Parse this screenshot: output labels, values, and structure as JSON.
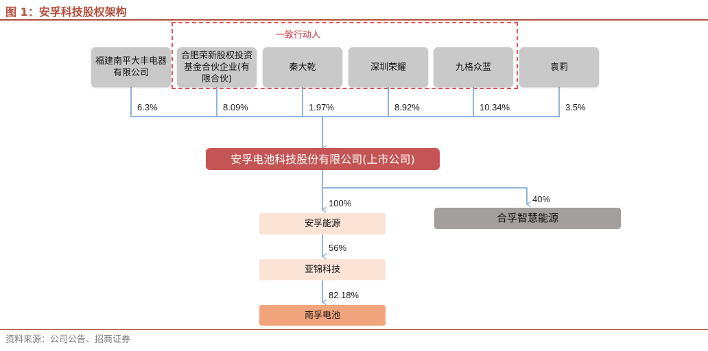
{
  "title": "图 1：安孚科技股权架构",
  "concert_group_label": "一致行动人",
  "shareholders": [
    {
      "name": "福建南平大丰电器有限公司",
      "pct": "6.3%"
    },
    {
      "name": "合肥荣新股权投资基金合伙企业(有限合伙)",
      "pct": "8.09%"
    },
    {
      "name": "秦大乾",
      "pct": "1.97%"
    },
    {
      "name": "深圳荣耀",
      "pct": "8.92%"
    },
    {
      "name": "九格众蓝",
      "pct": "10.34%"
    },
    {
      "name": "袁莉",
      "pct": "3.5%"
    }
  ],
  "listed_company": "安孚电池科技股份有限公司(上市公司)",
  "subsidiaries": [
    {
      "name": "安孚能源",
      "pct": "100%"
    },
    {
      "name": "合孚智慧能源",
      "pct": "40%"
    }
  ],
  "chain": [
    {
      "name": "亚锦科技",
      "pct": "56%"
    },
    {
      "name": "南孚电池",
      "pct": "82.18%"
    }
  ],
  "source": "资料来源：公司公告、招商证券"
}
